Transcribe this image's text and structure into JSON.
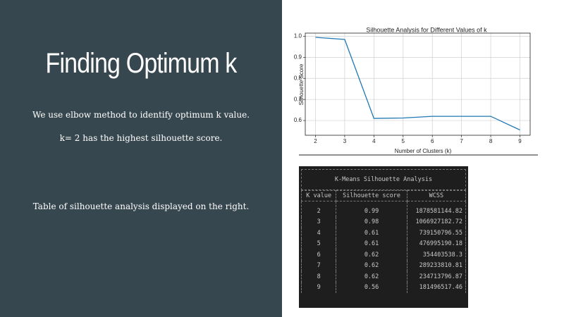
{
  "slide": {
    "title": "Finding Optimum k",
    "lines": [
      "We use elbow method to identify optimum k value.",
      "k= 2 has the highest silhouette score.",
      "Table of silhouette analysis displayed on the right."
    ]
  },
  "chart_data": {
    "type": "line",
    "title": "Silhouette Analysis for Different Values of k",
    "x_label": "Number of Clusters (k)",
    "y_label": "Silhouette Score",
    "x": [
      2,
      3,
      4,
      5,
      6,
      7,
      8,
      9
    ],
    "values": [
      0.995,
      0.985,
      0.61,
      0.612,
      0.62,
      0.62,
      0.62,
      0.555
    ],
    "color": "#1f77b4",
    "xlim": [
      1.65,
      9.35
    ],
    "xticks": [
      2,
      3,
      4,
      5,
      6,
      7,
      8,
      9
    ],
    "ylim": [
      0.53,
      1.015
    ],
    "yticks": [
      0.6,
      0.7,
      0.8,
      0.9,
      {
        "value": 1,
        "label": "1.0"
      }
    ],
    "grid": true
  },
  "table": {
    "title": "K-Means Silhouette Analysis",
    "columns": [
      "K value",
      "Silhouette score",
      "WCSS"
    ],
    "rows": [
      [
        2,
        0.99,
        1878581144.82
      ],
      [
        3,
        0.98,
        1066927182.72
      ],
      [
        4,
        0.61,
        739150796.55
      ],
      [
        5,
        0.61,
        476995190.18
      ],
      [
        6,
        0.62,
        354403538.3
      ],
      [
        7,
        0.62,
        289233810.81
      ],
      [
        8,
        0.62,
        234713796.87
      ],
      [
        9,
        0.56,
        181496517.46
      ]
    ]
  }
}
